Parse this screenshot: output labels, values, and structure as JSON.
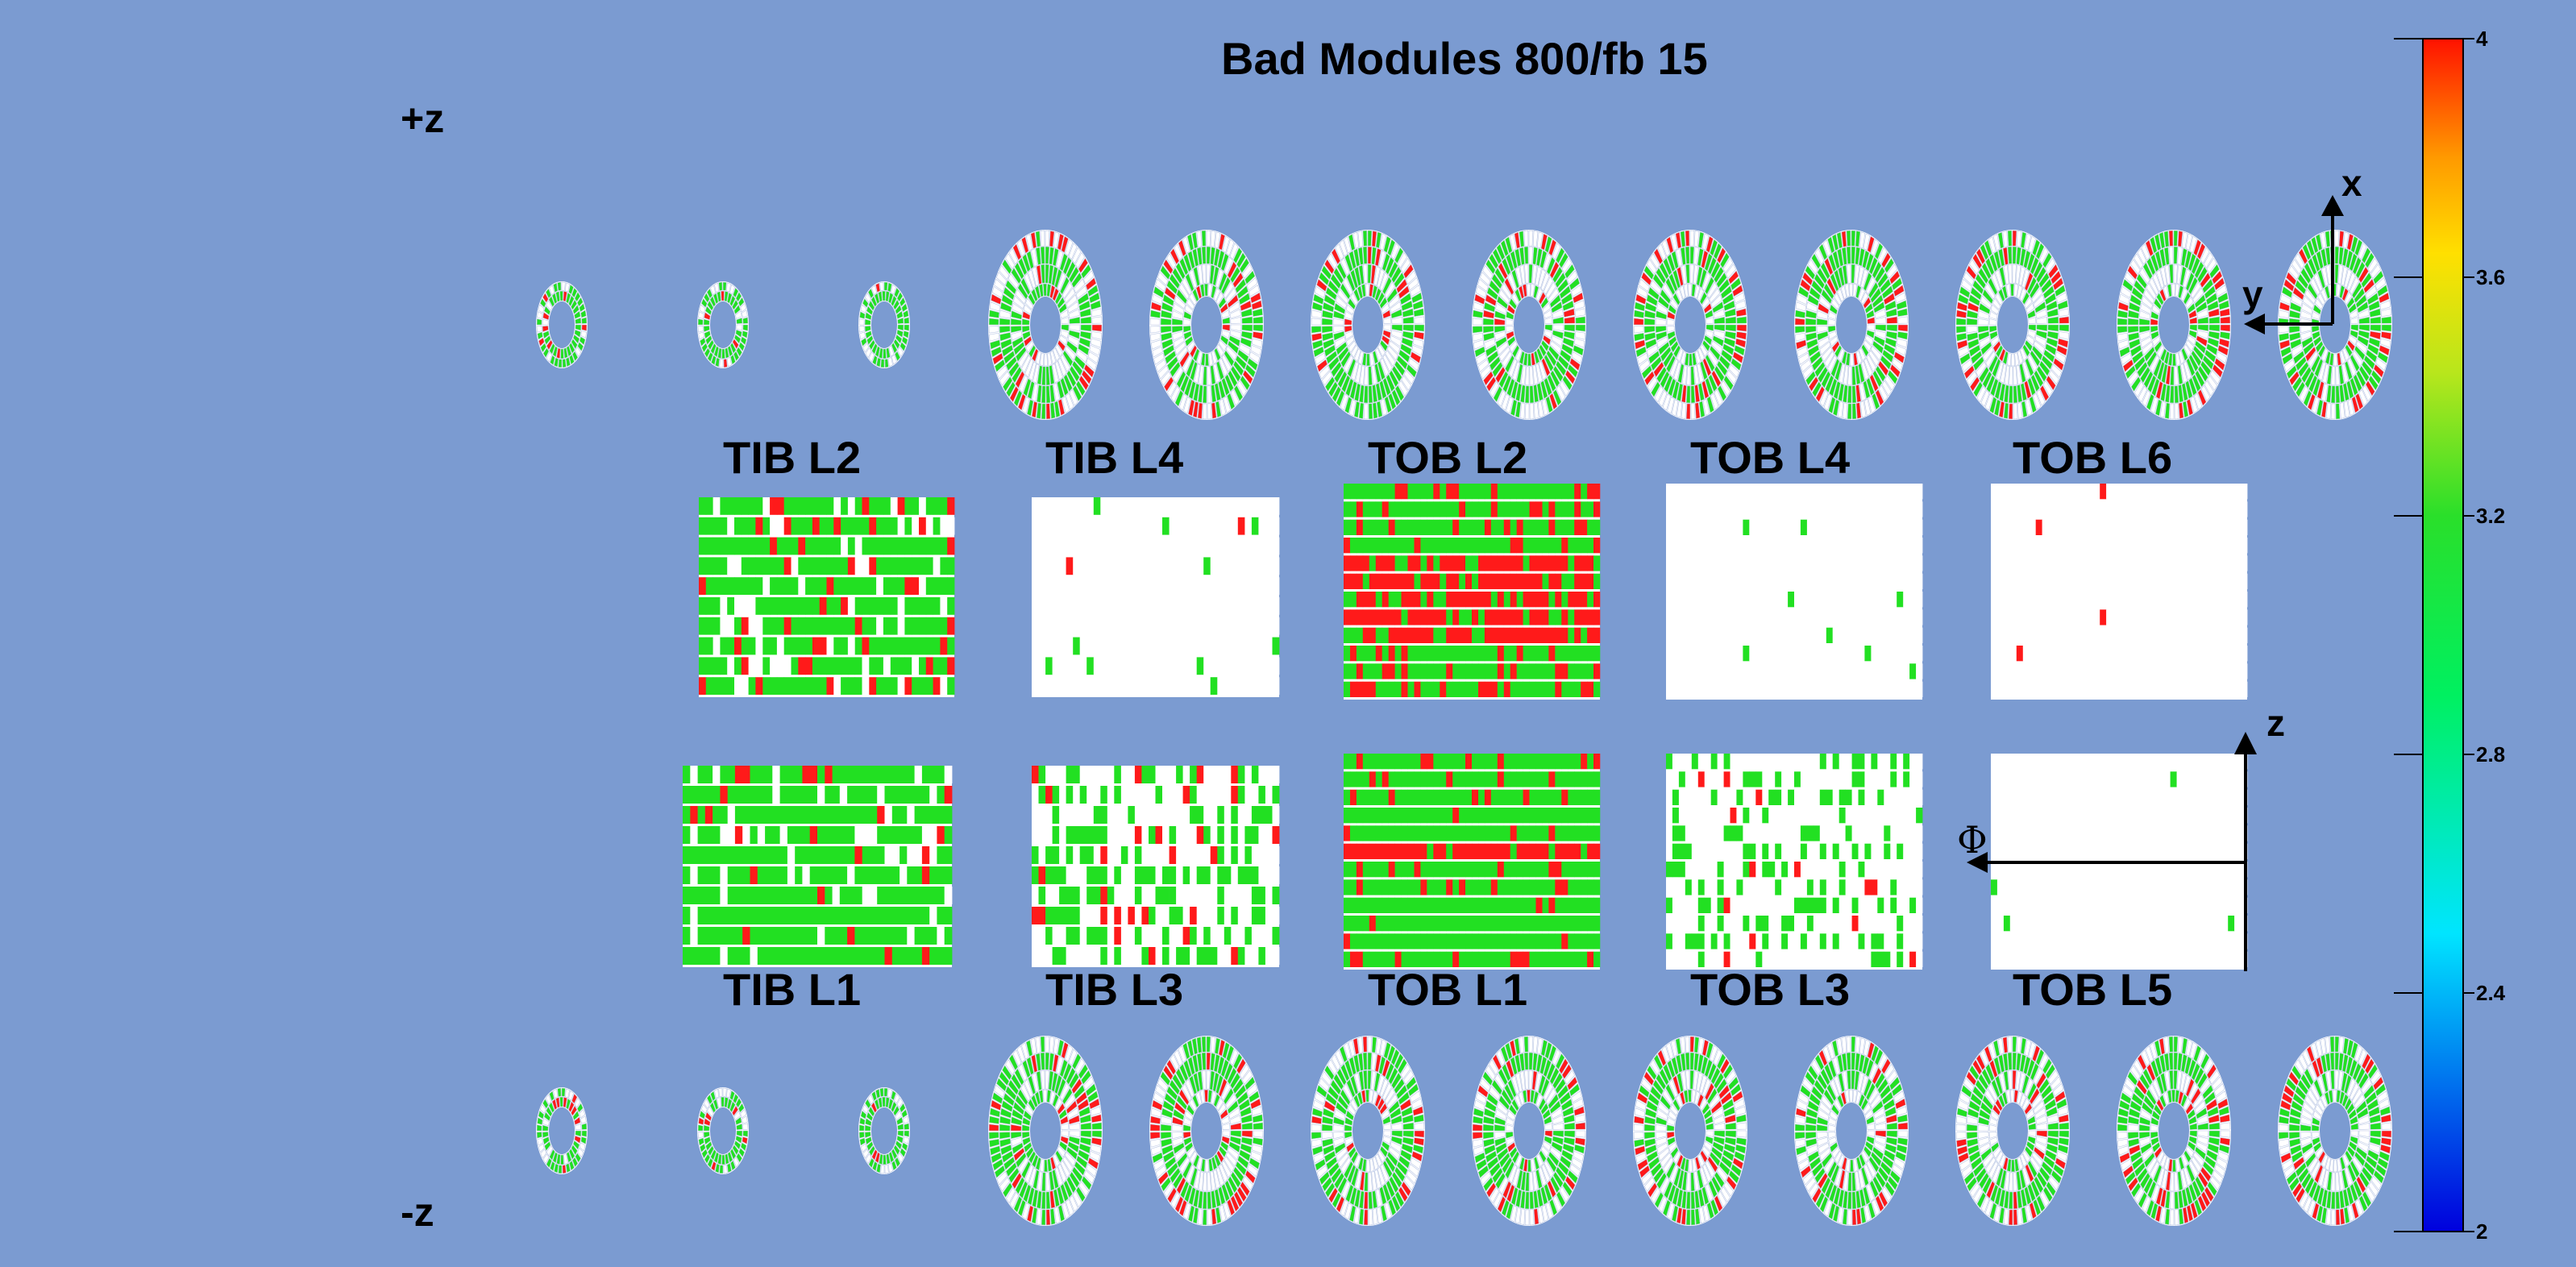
{
  "title": "Bad Modules 800/fb 15",
  "side_labels": {
    "plus_z": "+z",
    "minus_z": "-z"
  },
  "barrel_layers": [
    {
      "name": "TIB L2",
      "group": "top"
    },
    {
      "name": "TIB L4",
      "group": "top"
    },
    {
      "name": "TOB L2",
      "group": "top"
    },
    {
      "name": "TOB L4",
      "group": "top"
    },
    {
      "name": "TOB L6",
      "group": "top"
    },
    {
      "name": "TIB L1",
      "group": "bottom"
    },
    {
      "name": "TIB L3",
      "group": "bottom"
    },
    {
      "name": "TOB L1",
      "group": "bottom"
    },
    {
      "name": "TOB L3",
      "group": "bottom"
    },
    {
      "name": "TOB L5",
      "group": "bottom"
    }
  ],
  "axes_disk": {
    "x": "x",
    "y": "y"
  },
  "axes_barrel": {
    "z": "z",
    "phi": "Φ"
  },
  "color_scale": {
    "min": 2,
    "max": 4,
    "ticks": [
      "2",
      "2.4",
      "2.8",
      "3.2",
      "3.6",
      "4"
    ]
  },
  "colors": {
    "background": "#7b9bd1",
    "good": "#22e022",
    "bad": "#ff1a1a",
    "empty": "#ffffff",
    "low": "#1a1acc"
  }
}
